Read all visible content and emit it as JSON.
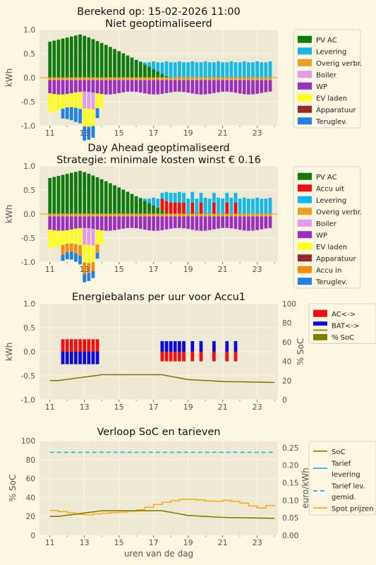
{
  "chart_data": [
    {
      "type": "bar",
      "stacked": true,
      "title": "Berekend op: 15-02-2026 11:00\nNiet geoptimaliseerd",
      "ylabel": "kWh",
      "ylim": [
        -1.0,
        1.0
      ],
      "yticks": [
        "-1.0",
        "-0.5",
        "0.0",
        "0.5",
        "1.0"
      ],
      "xlim": [
        10.4,
        24.2
      ],
      "xticks": [
        "11",
        "13",
        "15",
        "17",
        "19",
        "21",
        "23"
      ],
      "legend": [
        "PV AC",
        "Levering",
        "Overig verbr.",
        "Boiler",
        "WP",
        "EV laden",
        "Apparatuur",
        "Teruglev."
      ],
      "colors": {
        "PV AC": "#107c10",
        "Levering": "#15b9e8",
        "Overig verbr.": "#e8a020",
        "Boiler": "#e39ce8",
        "WP": "#9b30c0",
        "EV laden": "#ffff14",
        "Apparatuur": "#962828",
        "Teruglev.": "#1e82e6"
      },
      "grid": true,
      "legend_placement": "right"
    },
    {
      "type": "bar",
      "stacked": true,
      "title": "Day Ahead geoptimaliseerd\nStrategie: minimale kosten winst € 0.16",
      "ylabel": "kWh",
      "ylim": [
        -1.0,
        1.0
      ],
      "yticks": [
        "-1.0",
        "-0.5",
        "0.0",
        "0.5",
        "1.0"
      ],
      "xlim": [
        10.4,
        24.2
      ],
      "xticks": [
        "11",
        "13",
        "15",
        "17",
        "19",
        "21",
        "23"
      ],
      "legend": [
        "PV AC",
        "Accu uit",
        "Levering",
        "Overig verbr.",
        "Boiler",
        "WP",
        "EV laden",
        "Apparatuur",
        "Accu in",
        "Teruglev."
      ],
      "colors": {
        "PV AC": "#107c10",
        "Accu uit": "#f01010",
        "Levering": "#15b9e8",
        "Overig verbr.": "#e8a020",
        "Boiler": "#e39ce8",
        "WP": "#9b30c0",
        "EV laden": "#ffff14",
        "Apparatuur": "#962828",
        "Accu in": "#f88a10",
        "Teruglev.": "#1e82e6"
      },
      "grid": true,
      "legend_placement": "right"
    },
    {
      "type": "bar",
      "title": "Energiebalans per uur voor Accu1",
      "ylabel": "kWh",
      "ylabel2": "% SoC",
      "ylim": [
        -1.0,
        1.0
      ],
      "ylim2": [
        0,
        100
      ],
      "yticks": [
        "-1.0",
        "-0.5",
        "0.0",
        "0.5",
        "1.0"
      ],
      "yticks2": [
        "0",
        "20",
        "40",
        "60",
        "80",
        "100"
      ],
      "xlim": [
        10.4,
        24.2
      ],
      "xticks": [
        "11",
        "13",
        "15",
        "17",
        "19",
        "21",
        "23"
      ],
      "legend": [
        "AC<->",
        "BAT<->",
        "% SoC"
      ],
      "colors": {
        "AC<->": "#f01010",
        "BAT<->": "#0a0adc",
        "% SoC": "#808000"
      },
      "grid": true,
      "legend_placement": "right"
    },
    {
      "type": "line",
      "title": "Verloop SoC en tarieven",
      "xlabel": "uren van de dag",
      "ylabel": "% SoC",
      "ylabel2": "euro/kWh",
      "ylim": [
        0,
        100
      ],
      "ylim2": [
        0,
        0.27
      ],
      "yticks": [
        "0",
        "20",
        "40",
        "60",
        "80",
        "100"
      ],
      "yticks2": [
        "0.00",
        "0.05",
        "0.10",
        "0.15",
        "0.20",
        "0.25"
      ],
      "xlim": [
        10.4,
        24.2
      ],
      "xticks": [
        "11",
        "13",
        "15",
        "17",
        "19",
        "21",
        "23"
      ],
      "legend": [
        "SoC",
        "Tarief\nlevering",
        "Tarief lev.\ngemid.",
        "Spot prijzen"
      ],
      "colors": {
        "SoC": "#808000",
        "Tarief levering": "#15b9f0",
        "Tarief lev. gemid.": "#15b9f0",
        "Spot prijzen": "#ffa500"
      },
      "grid": true,
      "legend_placement": "right",
      "tarief_gemid": 0.237
    }
  ]
}
